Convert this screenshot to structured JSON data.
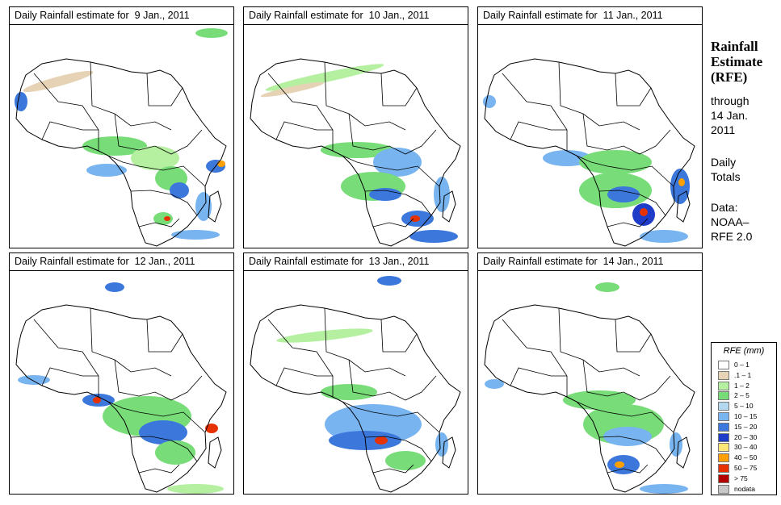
{
  "panels": [
    {
      "title": "Daily Rainfall estimate for  9 Jan., 2011"
    },
    {
      "title": "Daily Rainfall estimate for  10 Jan., 2011"
    },
    {
      "title": "Daily Rainfall estimate for  11 Jan., 2011"
    },
    {
      "title": "Daily Rainfall estimate for  12 Jan., 2011"
    },
    {
      "title": "Daily Rainfall estimate for  13 Jan., 2011"
    },
    {
      "title": "Daily Rainfall estimate for  14 Jan., 2011"
    }
  ],
  "side": {
    "heading": [
      "Rainfall",
      "Estimate",
      "(RFE)"
    ],
    "through": "through",
    "date_line1": "14 Jan.",
    "date_line2": "2011",
    "period1": "Daily",
    "period2": "Totals",
    "data_label": "Data:",
    "source1": "NOAA–",
    "source2": "RFE 2.0"
  },
  "legend": {
    "title": "RFE (mm)",
    "items": [
      {
        "label": "0 – 1",
        "color": "#ffffff"
      },
      {
        "label": ".1 – 1",
        "color": "#e6d2b4"
      },
      {
        "label": "1 – 2",
        "color": "#b4f0a0"
      },
      {
        "label": "2 – 5",
        "color": "#78dc78"
      },
      {
        "label": "5 – 10",
        "color": "#b4d8f0"
      },
      {
        "label": "10 – 15",
        "color": "#78b4f0"
      },
      {
        "label": "15 – 20",
        "color": "#3c78dc"
      },
      {
        "label": "20 – 30",
        "color": "#1e3cc8"
      },
      {
        "label": "30 – 40",
        "color": "#ffe678"
      },
      {
        "label": "40 – 50",
        "color": "#ffa000"
      },
      {
        "label": "50 – 75",
        "color": "#e63200"
      },
      {
        "label": "> 75",
        "color": "#b40000"
      },
      {
        "label": "nodata",
        "color": "#c8c8c8"
      }
    ]
  }
}
